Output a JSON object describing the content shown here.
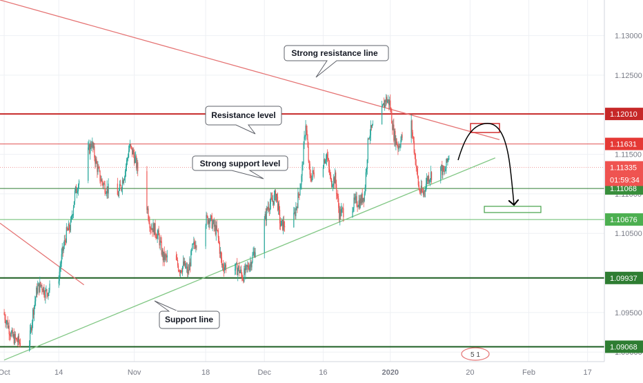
{
  "chart_data": {
    "type": "candlestick",
    "instrument_note": "",
    "y_axis": {
      "range": [
        1.0888,
        1.1345
      ],
      "tick_labels": [
        "1.13000",
        "1.12500",
        "1.11500",
        "1.11000",
        "1.10500",
        "1.09500",
        "1.09000"
      ],
      "tick_values": [
        1.13,
        1.125,
        1.115,
        1.11,
        1.105,
        1.095,
        1.09
      ]
    },
    "x_axis": {
      "range": [
        "2019-09-30",
        "2020-02-21"
      ],
      "tick_labels": [
        "Oct",
        "14",
        "Nov",
        "18",
        "Dec",
        "16",
        "2020",
        "20",
        "Feb",
        "17"
      ],
      "tick_dates": [
        "2019-10-01",
        "2019-10-14",
        "2019-11-01",
        "2019-11-18",
        "2019-12-02",
        "2019-12-16",
        "2020-01-01",
        "2020-01-20",
        "2020-02-03",
        "2020-02-17"
      ]
    },
    "grid": true,
    "levels": [
      {
        "value": 1.1201,
        "label": "1.12010",
        "color": "#c62828",
        "tag_color": "#c62828",
        "width": 2
      },
      {
        "value": 1.11631,
        "label": "1.11631",
        "color": "#e05252",
        "tag_color": "#e53935",
        "width": 1
      },
      {
        "value": 1.11335,
        "label": "1.11335",
        "color": "#ef9a9a",
        "tag_color": "#ef5350",
        "width": 1,
        "dotted": true
      },
      {
        "value": 1.11068,
        "label": "1.11068",
        "color": "#2e7d32",
        "tag_color": "#388e3c",
        "width": 1
      },
      {
        "value": 1.10676,
        "label": "1.10676",
        "color": "#66bb6a",
        "tag_color": "#4caf50",
        "width": 1
      },
      {
        "value": 1.09937,
        "label": "1.09937",
        "color": "#1b5e20",
        "tag_color": "#2e7d32",
        "width": 2
      },
      {
        "value": 1.09068,
        "label": "1.09068",
        "color": "#1b5e20",
        "tag_color": "#2e7d32",
        "width": 2
      }
    ],
    "countdown": "01:59:34",
    "trendlines": [
      {
        "name": "resistance",
        "from": [
          "2019-09-30",
          1.1345
        ],
        "to": [
          "2020-01-27",
          1.11685
        ],
        "color": "#e57373"
      },
      {
        "name": "early-resistance",
        "from": [
          "2019-09-30",
          1.1063
        ],
        "to": [
          "2019-10-20",
          1.0985
        ],
        "color": "#e57373"
      },
      {
        "name": "support",
        "from": [
          "2019-10-01",
          1.089
        ],
        "to": [
          "2020-01-26",
          1.11455
        ],
        "color": "#81c784"
      }
    ],
    "price_path": [
      [
        "2019-10-01",
        1.095
      ],
      [
        "2019-10-02",
        1.0935
      ],
      [
        "2019-10-03",
        1.092
      ],
      [
        "2019-10-04",
        1.0915
      ],
      [
        "2019-10-07",
        1.0905
      ],
      [
        "2019-10-08",
        1.095
      ],
      [
        "2019-10-09",
        1.098
      ],
      [
        "2019-10-10",
        1.0985
      ],
      [
        "2019-10-11",
        1.0975
      ],
      [
        "2019-10-14",
        1.099
      ],
      [
        "2019-10-15",
        1.1025
      ],
      [
        "2019-10-16",
        1.105
      ],
      [
        "2019-10-17",
        1.106
      ],
      [
        "2019-10-18",
        1.11
      ],
      [
        "2019-10-21",
        1.115
      ],
      [
        "2019-10-22",
        1.1165
      ],
      [
        "2019-10-23",
        1.114
      ],
      [
        "2019-10-24",
        1.112
      ],
      [
        "2019-10-25",
        1.111
      ],
      [
        "2019-10-28",
        1.1095
      ],
      [
        "2019-10-29",
        1.111
      ],
      [
        "2019-10-30",
        1.113
      ],
      [
        "2019-10-31",
        1.116
      ],
      [
        "2019-11-01",
        1.115
      ],
      [
        "2019-11-04",
        1.109
      ],
      [
        "2019-11-05",
        1.106
      ],
      [
        "2019-11-06",
        1.1055
      ],
      [
        "2019-11-07",
        1.1045
      ],
      [
        "2019-11-08",
        1.102
      ],
      [
        "2019-11-11",
        1.1015
      ],
      [
        "2019-11-12",
        1.1005
      ],
      [
        "2019-11-13",
        1.101
      ],
      [
        "2019-11-14",
        1.1
      ],
      [
        "2019-11-15",
        1.103
      ],
      [
        "2019-11-18",
        1.1065
      ],
      [
        "2019-11-19",
        1.107
      ],
      [
        "2019-11-20",
        1.106
      ],
      [
        "2019-11-21",
        1.105
      ],
      [
        "2019-11-22",
        1.101
      ],
      [
        "2019-11-25",
        1.1005
      ],
      [
        "2019-11-26",
        1.1005
      ],
      [
        "2019-11-27",
        1.0995
      ],
      [
        "2019-11-28",
        1.1005
      ],
      [
        "2019-11-29",
        1.1015
      ],
      [
        "2019-12-02",
        1.106
      ],
      [
        "2019-12-03",
        1.1085
      ],
      [
        "2019-12-04",
        1.109
      ],
      [
        "2019-12-05",
        1.11
      ],
      [
        "2019-12-06",
        1.106
      ],
      [
        "2019-12-09",
        1.1065
      ],
      [
        "2019-12-10",
        1.109
      ],
      [
        "2019-12-11",
        1.112
      ],
      [
        "2019-12-12",
        1.119
      ],
      [
        "2019-12-13",
        1.112
      ],
      [
        "2019-12-16",
        1.114
      ],
      [
        "2019-12-17",
        1.115
      ],
      [
        "2019-12-18",
        1.1115
      ],
      [
        "2019-12-19",
        1.112
      ],
      [
        "2019-12-20",
        1.1075
      ],
      [
        "2019-12-23",
        1.1085
      ],
      [
        "2019-12-24",
        1.109
      ],
      [
        "2019-12-25",
        1.109
      ],
      [
        "2019-12-26",
        1.11
      ],
      [
        "2019-12-27",
        1.1175
      ],
      [
        "2019-12-30",
        1.12
      ],
      [
        "2019-12-31",
        1.122
      ],
      [
        "2020-01-01",
        1.1215
      ],
      [
        "2020-01-02",
        1.1175
      ],
      [
        "2020-01-03",
        1.116
      ],
      [
        "2020-01-06",
        1.1195
      ],
      [
        "2020-01-07",
        1.115
      ],
      [
        "2020-01-08",
        1.1105
      ],
      [
        "2020-01-09",
        1.11
      ],
      [
        "2020-01-10",
        1.112
      ],
      [
        "2020-01-13",
        1.1135
      ],
      [
        "2020-01-14",
        1.1125
      ],
      [
        "2020-01-15",
        1.1148
      ]
    ],
    "candle_colors": {
      "up": "#26a69a",
      "down": "#ef5350"
    }
  },
  "annotations": {
    "callouts": [
      {
        "id": "strong-resistance",
        "text": "Strong resistance line"
      },
      {
        "id": "resistance-level",
        "text": "Resistance level"
      },
      {
        "id": "strong-support",
        "text": "Strong support level"
      },
      {
        "id": "support-line",
        "text": "Support line"
      }
    ],
    "marker_text": "5 1"
  }
}
